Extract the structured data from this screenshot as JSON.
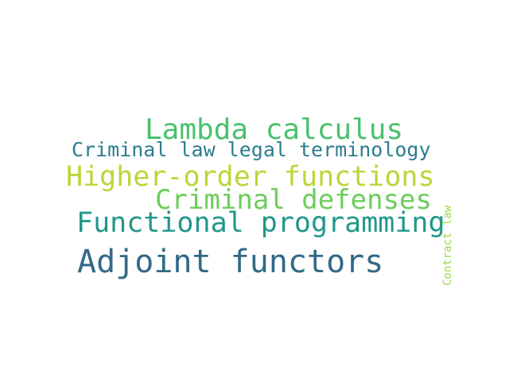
{
  "words": [
    {
      "text": "Lambda calculus",
      "color": "#48c16e"
    },
    {
      "text": "Criminal law legal terminology",
      "color": "#2c7d8d"
    },
    {
      "text": "Higher-order functions",
      "color": "#b9d737"
    },
    {
      "text": "Criminal defenses",
      "color": "#6ccd5a"
    },
    {
      "text": "Functional programming",
      "color": "#21978a"
    },
    {
      "text": "Adjoint functors",
      "color": "#336987"
    },
    {
      "text": "Contract law",
      "color": "#9cd947"
    }
  ]
}
